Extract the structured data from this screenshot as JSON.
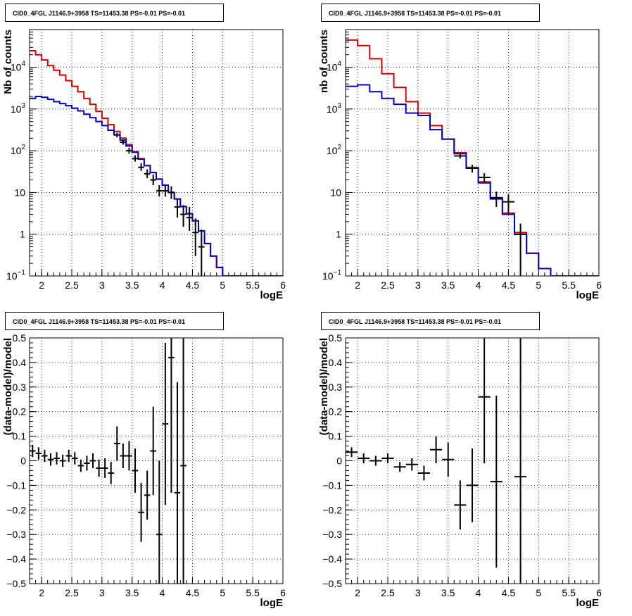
{
  "colors": {
    "model_red": "#dd0000",
    "model_blue": "#0000cc",
    "data": "#000000",
    "grid": "#000000"
  },
  "chart_data": [
    {
      "type": "line",
      "title": "CID0_4FGL J1146.9+3958 TS=11453.38 PS=-0.01 PS=-0.01",
      "xlabel": "logE",
      "ylabel": "Nb of counts",
      "yscale": "log",
      "xlim": [
        1.8,
        6.0
      ],
      "ylim": [
        0.1,
        80000
      ],
      "xticks": [
        "2",
        "2.5",
        "3",
        "3.5",
        "4",
        "4.5",
        "5",
        "5.5",
        "6"
      ],
      "yticks": [
        {
          "v": 0.1,
          "b": "10",
          "e": "−1"
        },
        {
          "v": 1,
          "b": "1",
          "e": ""
        },
        {
          "v": 10,
          "b": "10",
          "e": ""
        },
        {
          "v": 100,
          "b": "10",
          "e": "2"
        },
        {
          "v": 1000,
          "b": "10",
          "e": "3"
        },
        {
          "v": 10000,
          "b": "10",
          "e": "4"
        }
      ],
      "grid": true,
      "bin_edges": [
        1.8,
        1.9,
        2.0,
        2.1,
        2.2,
        2.3,
        2.4,
        2.5,
        2.6,
        2.7,
        2.8,
        2.9,
        3.0,
        3.1,
        3.2,
        3.3,
        3.4,
        3.5,
        3.6,
        3.7,
        3.8,
        3.9,
        4.0,
        4.1,
        4.2,
        4.3,
        4.4,
        4.5,
        4.6,
        4.7,
        4.8,
        4.9,
        5.0,
        5.1,
        5.2,
        5.3,
        5.4,
        5.5,
        5.6,
        5.7,
        5.8,
        5.9,
        6.0
      ],
      "series": [
        {
          "color": "red",
          "values": [
            25000,
            20000,
            15000,
            11000,
            8500,
            6500,
            4800,
            3500,
            2600,
            1800,
            1300,
            880,
            600,
            420,
            290,
            200,
            140,
            95,
            65,
            44,
            30,
            21,
            15,
            10,
            7,
            4.6,
            3.1,
            2.1,
            1.2,
            0.6,
            0.3,
            0.16,
            0.1,
            0.1,
            0.1,
            0.1,
            0.1,
            0.1,
            0.1,
            0.1,
            0.1,
            0.1
          ]
        },
        {
          "color": "blue",
          "values": [
            1800,
            2000,
            1900,
            1700,
            1500,
            1350,
            1200,
            1050,
            900,
            750,
            620,
            500,
            400,
            310,
            240,
            180,
            130,
            92,
            63,
            44,
            30,
            21,
            15,
            10,
            7,
            4.6,
            3.1,
            2.1,
            1.2,
            0.6,
            0.3,
            0.16,
            0.1,
            0.1,
            0.1,
            0.1,
            0.1,
            0.1,
            0.1,
            0.1,
            0.1,
            0.1
          ]
        }
      ],
      "points": {
        "x": [
          3.25,
          3.35,
          3.45,
          3.55,
          3.65,
          3.75,
          3.85,
          3.95,
          4.05,
          4.15,
          4.25,
          4.35,
          4.45,
          4.55,
          4.65
        ],
        "y": [
          240,
          160,
          100,
          65,
          40,
          28,
          20,
          11,
          11,
          10,
          4.5,
          3,
          2.5,
          1.1,
          0.5
        ],
        "lo": [
          210,
          140,
          85,
          55,
          33,
          22,
          15,
          8,
          8,
          7,
          2.5,
          1.5,
          1.2,
          0.3,
          0.1
        ],
        "hi": [
          270,
          185,
          118,
          78,
          50,
          36,
          27,
          15,
          15,
          14,
          7,
          5,
          4.5,
          2.4,
          1.3
        ]
      }
    },
    {
      "type": "line",
      "title": "CID0_4FGL J1146.9+3958 TS=11453.38 PS=-0.01 PS=-0.01",
      "xlabel": "logE",
      "ylabel": "nb of counts",
      "yscale": "log",
      "xlim": [
        1.8,
        6.0
      ],
      "ylim": [
        0.1,
        80000
      ],
      "xticks": [
        "2",
        "2.5",
        "3",
        "3.5",
        "4",
        "4.5",
        "5",
        "5.5",
        "6"
      ],
      "yticks": [
        {
          "v": 0.1,
          "b": "10",
          "e": "−1"
        },
        {
          "v": 1,
          "b": "1",
          "e": ""
        },
        {
          "v": 10,
          "b": "10",
          "e": ""
        },
        {
          "v": 100,
          "b": "10",
          "e": "2"
        },
        {
          "v": 1000,
          "b": "10",
          "e": "3"
        },
        {
          "v": 10000,
          "b": "10",
          "e": "4"
        }
      ],
      "grid": true,
      "bin_edges": [
        1.8,
        2.0,
        2.2,
        2.4,
        2.6,
        2.8,
        3.0,
        3.2,
        3.4,
        3.6,
        3.8,
        4.0,
        4.2,
        4.4,
        4.6,
        4.8,
        5.0,
        5.2,
        5.4,
        5.6,
        5.8,
        6.0
      ],
      "series": [
        {
          "color": "red",
          "values": [
            45000,
            33000,
            16000,
            7000,
            3300,
            1500,
            800,
            400,
            190,
            90,
            40,
            18,
            7.5,
            3.2,
            1.1,
            0.35,
            0.15,
            0.1,
            0.1,
            0.1,
            0.1
          ]
        },
        {
          "color": "blue",
          "values": [
            3500,
            3800,
            2600,
            1800,
            1300,
            800,
            700,
            320,
            190,
            85,
            38,
            17,
            7,
            3,
            1,
            0.35,
            0.15,
            0.1,
            0.1,
            0.1,
            0.1
          ]
        }
      ],
      "points": {
        "x": [
          3.7,
          3.9,
          4.1,
          4.3,
          4.5,
          4.7
        ],
        "y": [
          75,
          38,
          23,
          7.5,
          6,
          1.0
        ],
        "lo": [
          65,
          30,
          17,
          4.5,
          3,
          0.1
        ],
        "hi": [
          85,
          46,
          29,
          10.5,
          9,
          1.8
        ]
      }
    },
    {
      "type": "scatter",
      "title": "CID0_4FGL J1146.9+3958 TS=11453.38 PS=-0.01 PS=-0.01",
      "xlabel": "logE",
      "ylabel": "(data-model)/model",
      "xlim": [
        1.8,
        6.0
      ],
      "ylim": [
        -0.5,
        0.5
      ],
      "xticks": [
        "2",
        "2.5",
        "3",
        "3.5",
        "4",
        "4.5",
        "5",
        "5.5",
        "6"
      ],
      "yticks": [
        "−0.5",
        "−0.4",
        "−0.3",
        "−0.2",
        "−0.1",
        "0",
        "0.1",
        "0.2",
        "0.3",
        "0.4",
        "0.5"
      ],
      "grid": true,
      "xhalf": 0.05,
      "points": {
        "x": [
          1.85,
          1.95,
          2.05,
          2.15,
          2.25,
          2.35,
          2.45,
          2.55,
          2.65,
          2.75,
          2.85,
          2.95,
          3.05,
          3.15,
          3.25,
          3.35,
          3.45,
          3.55,
          3.65,
          3.75,
          3.85,
          3.95,
          4.05,
          4.15,
          4.25,
          4.35
        ],
        "y": [
          0.04,
          0.03,
          0.02,
          0.005,
          0.01,
          0.0,
          0.02,
          0.01,
          -0.02,
          -0.01,
          0.0,
          -0.03,
          -0.03,
          -0.05,
          0.07,
          0.02,
          0.02,
          -0.04,
          -0.21,
          -0.14,
          0.04,
          -0.3,
          0.15,
          0.42,
          -0.13,
          -0.02
        ],
        "err": [
          0.025,
          0.025,
          0.025,
          0.025,
          0.025,
          0.025,
          0.025,
          0.025,
          0.025,
          0.03,
          0.03,
          0.035,
          0.04,
          0.045,
          0.07,
          0.05,
          0.06,
          0.09,
          0.12,
          0.1,
          0.18,
          0.3,
          0.33,
          0.55,
          0.45,
          0.7
        ]
      }
    },
    {
      "type": "scatter",
      "title": "CID0_4FGL J1146.9+3958 TS=11453.38 PS=-0.01 PS=-0.01",
      "xlabel": "logE",
      "ylabel": "(data-model)/model",
      "xlim": [
        1.8,
        6.0
      ],
      "ylim": [
        -0.5,
        0.5
      ],
      "xticks": [
        "2",
        "2.5",
        "3",
        "3.5",
        "4",
        "4.5",
        "5",
        "5.5",
        "6"
      ],
      "yticks": [
        "−0.5",
        "−0.4",
        "−0.3",
        "−0.2",
        "−0.1",
        "0",
        "0.1",
        "0.2",
        "0.3",
        "0.4",
        "0.5"
      ],
      "grid": true,
      "xhalf": 0.1,
      "points": {
        "x": [
          1.9,
          2.1,
          2.3,
          2.5,
          2.7,
          2.9,
          3.1,
          3.3,
          3.5,
          3.7,
          3.9,
          4.1,
          4.3,
          4.7
        ],
        "y": [
          0.035,
          0.01,
          0.0,
          0.01,
          -0.025,
          -0.015,
          -0.05,
          0.045,
          0.005,
          -0.18,
          -0.1,
          0.26,
          -0.085,
          -0.065
        ],
        "err": [
          0.02,
          0.02,
          0.02,
          0.02,
          0.02,
          0.025,
          0.03,
          0.055,
          0.07,
          0.1,
          0.15,
          0.27,
          0.35,
          0.6
        ]
      }
    }
  ]
}
